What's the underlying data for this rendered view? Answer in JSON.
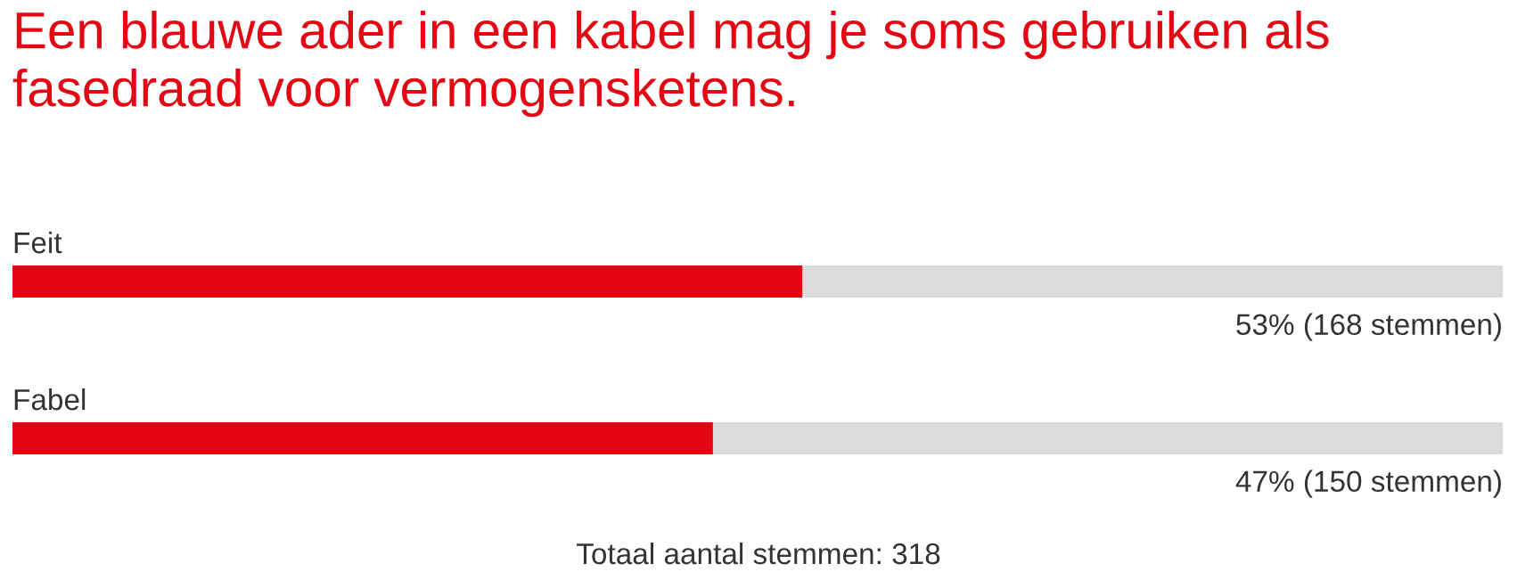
{
  "chart_data": {
    "type": "bar",
    "orientation": "horizontal",
    "title": "Een blauwe ader in een kabel mag je soms gebruiken als fasedraad voor vermogensketens.",
    "categories": [
      "Feit",
      "Fabel"
    ],
    "series": [
      {
        "color": "#e30613",
        "values": [
          53,
          47
        ],
        "value_labels": [
          "53% (168 stemmen)",
          "47% (150 stemmen)"
        ]
      }
    ],
    "xlim": [
      0,
      100
    ],
    "annotations": [
      "Totaal aantal stemmen: 318"
    ]
  }
}
